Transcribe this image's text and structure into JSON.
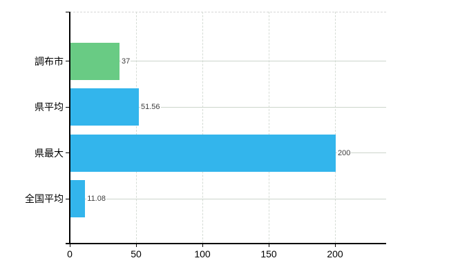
{
  "chart_data": {
    "type": "bar",
    "orientation": "horizontal",
    "title": "",
    "xlabel": "",
    "ylabel": "",
    "categories": [
      "調布市",
      "県平均",
      "県最大",
      "全国平均"
    ],
    "values": [
      37,
      51.56,
      200,
      11.08
    ],
    "value_labels": [
      "37",
      "51.56",
      "200",
      "11.08"
    ],
    "bar_colors": [
      "#69cb84",
      "#33b5ec",
      "#33b5ec",
      "#33b5ec"
    ],
    "x_ticks": [
      0,
      50,
      100,
      150,
      200
    ],
    "x_tick_labels": [
      "0",
      "50",
      "100",
      "150",
      "200"
    ],
    "xlim": [
      0,
      238.5
    ],
    "grid": true,
    "legend": "none",
    "colors": {
      "background": "#ffffff",
      "axis": "#000000",
      "h_gridline": "#ccd5cb",
      "v_gridline": "#d5dcd5",
      "top_border": "#d6d6d6",
      "value_label_text": "#3c3c3c",
      "tick_label_text": "#000000"
    }
  }
}
